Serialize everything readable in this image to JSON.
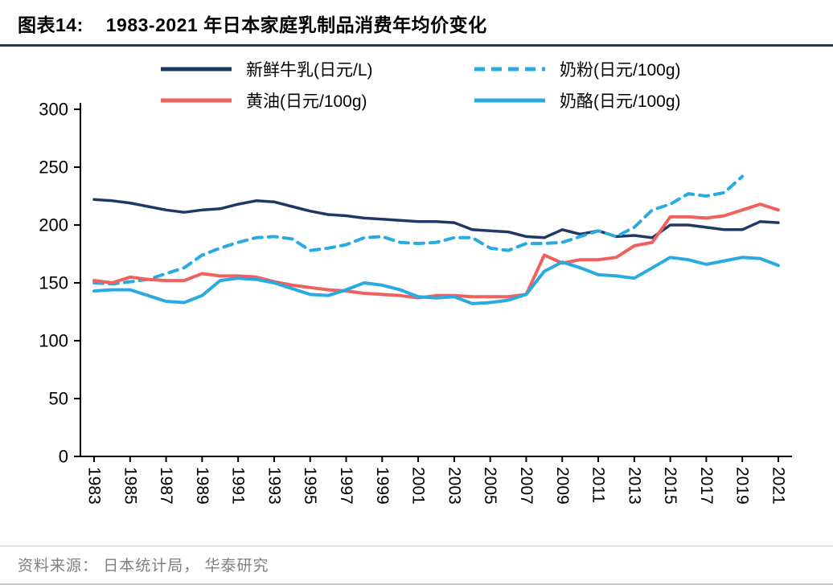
{
  "header": {
    "tag": "图表14:",
    "title": "1983-2021 年日本家庭乳制品消费年均价变化"
  },
  "footer": {
    "source": "资料来源： 日本统计局， 华泰研究"
  },
  "colors": {
    "navy": "#1F3864",
    "red": "#F0615E",
    "blue": "#29ABE2",
    "axis": "#000000",
    "source_gray": "#7F7F7F",
    "rule_gray": "#C9C9C9"
  },
  "chart_data": {
    "type": "line",
    "title": "1983-2021 年日本家庭乳制品消费年均价变化",
    "xlabel": "",
    "ylabel": "",
    "ylim": [
      0,
      300
    ],
    "yticks": [
      0,
      50,
      100,
      150,
      200,
      250,
      300
    ],
    "x": [
      1983,
      1984,
      1985,
      1986,
      1987,
      1988,
      1989,
      1990,
      1991,
      1992,
      1993,
      1994,
      1995,
      1996,
      1997,
      1998,
      1999,
      2000,
      2001,
      2002,
      2003,
      2004,
      2005,
      2006,
      2007,
      2008,
      2009,
      2010,
      2011,
      2012,
      2013,
      2014,
      2015,
      2016,
      2017,
      2018,
      2019,
      2020,
      2021
    ],
    "xticks": [
      1983,
      1985,
      1987,
      1989,
      1991,
      1993,
      1995,
      1997,
      1999,
      2001,
      2003,
      2005,
      2007,
      2009,
      2011,
      2013,
      2015,
      2017,
      2019,
      2021
    ],
    "grid": false,
    "legend_position": "top",
    "series": [
      {
        "id": "fresh-milk",
        "name": "新鲜牛乳(日元/L)",
        "color": "#1F3864",
        "dash": false,
        "values": [
          222,
          221,
          219,
          216,
          213,
          211,
          213,
          214,
          218,
          221,
          220,
          216,
          212,
          209,
          208,
          206,
          205,
          204,
          203,
          203,
          202,
          196,
          195,
          194,
          190,
          189,
          196,
          192,
          195,
          190,
          191,
          189,
          200,
          200,
          198,
          196,
          196,
          203,
          202
        ]
      },
      {
        "id": "milk-powder",
        "name": "奶粉(日元/100g)",
        "color": "#29ABE2",
        "dash": true,
        "values": [
          150,
          149,
          151,
          153,
          158,
          163,
          174,
          180,
          185,
          189,
          190,
          188,
          178,
          180,
          183,
          189,
          190,
          185,
          184,
          185,
          189,
          189,
          180,
          178,
          184,
          184,
          185,
          190,
          195,
          190,
          198,
          213,
          218,
          227,
          225,
          228,
          242,
          null,
          null
        ]
      },
      {
        "id": "butter",
        "name": "黄油(日元/100g)",
        "color": "#F0615E",
        "dash": false,
        "values": [
          152,
          150,
          155,
          153,
          152,
          152,
          158,
          156,
          156,
          155,
          151,
          148,
          146,
          144,
          143,
          141,
          140,
          139,
          137,
          139,
          139,
          138,
          138,
          138,
          140,
          174,
          167,
          170,
          170,
          172,
          182,
          185,
          207,
          207,
          206,
          208,
          213,
          218,
          213
        ]
      },
      {
        "id": "cheese",
        "name": "奶酪(日元/100g)",
        "color": "#29ABE2",
        "dash": false,
        "values": [
          143,
          144,
          144,
          139,
          134,
          133,
          139,
          152,
          154,
          153,
          150,
          145,
          140,
          139,
          144,
          150,
          148,
          144,
          138,
          137,
          138,
          132,
          133,
          135,
          140,
          160,
          168,
          163,
          157,
          156,
          154,
          163,
          172,
          170,
          166,
          169,
          172,
          171,
          165
        ]
      }
    ]
  }
}
